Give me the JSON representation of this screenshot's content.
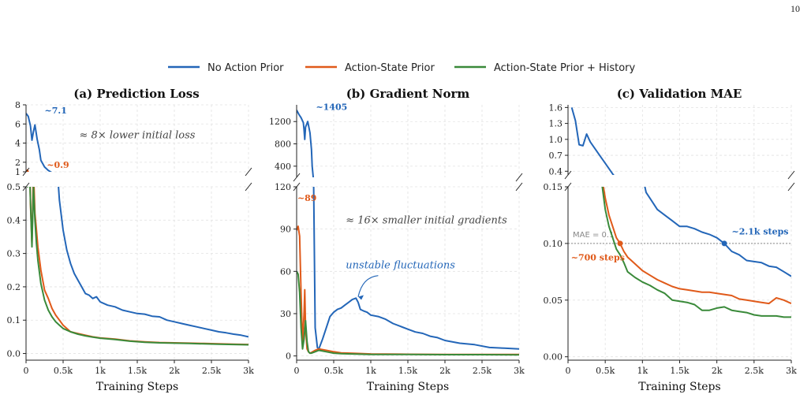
{
  "page": {
    "number": "10"
  },
  "colors": {
    "no_prior": "#2366b8",
    "as_prior": "#e05a1a",
    "as_hist": "#3a8a3a",
    "ref": "#888888",
    "grid": "#e2e2e2"
  },
  "legend": [
    {
      "name": "No Action Prior",
      "color": "#2366b8"
    },
    {
      "name": "Action-State Prior",
      "color": "#e05a1a"
    },
    {
      "name": "Action-State Prior + History",
      "color": "#3a8a3a"
    }
  ],
  "chart_data": [
    {
      "type": "line",
      "title": "(a) Prediction Loss",
      "xlabel": "Training Steps",
      "xlim": [
        0,
        3000
      ],
      "xticks": [
        0,
        500,
        1000,
        1500,
        2000,
        2500,
        3000
      ],
      "xtick_labels": [
        "0",
        "0.5k",
        "1k",
        "1.5k",
        "2k",
        "2.5k",
        "3k"
      ],
      "broken_y": true,
      "upper": {
        "ylim": [
          1,
          8
        ],
        "yticks": [
          1,
          2,
          4,
          6,
          8
        ],
        "ytick_labels": [
          "1",
          "2",
          "4",
          "6",
          "8"
        ]
      },
      "lower": {
        "ylim": [
          -0.02,
          0.5
        ],
        "yticks": [
          0,
          0.1,
          0.2,
          0.3,
          0.4,
          0.5
        ],
        "ytick_labels": [
          "0.0",
          "0.1",
          "0.2",
          "0.3",
          "0.4",
          "0.5"
        ]
      },
      "annotations": [
        {
          "text": "~7.1",
          "x": 250,
          "y": 7.1,
          "panel": "upper",
          "color": "#2366b8",
          "bold": true
        },
        {
          "text": "~0.9",
          "x": 280,
          "y": 1.4,
          "panel": "upper",
          "color": "#e05a1a",
          "bold": true
        },
        {
          "text": "≈ 8× lower initial loss",
          "x": 1500,
          "y": 4.5,
          "panel": "upper",
          "color": "#444444",
          "italic": true
        }
      ],
      "series": [
        {
          "name": "No Action Prior",
          "color": "#2366b8",
          "x": [
            0,
            30,
            60,
            80,
            100,
            120,
            150,
            180,
            200,
            250,
            300,
            350,
            400,
            450,
            500,
            550,
            600,
            650,
            700,
            750,
            800,
            850,
            900,
            950,
            1000,
            1100,
            1200,
            1300,
            1400,
            1500,
            1600,
            1700,
            1800,
            1900,
            2000,
            2100,
            2200,
            2300,
            2400,
            2500,
            2600,
            2700,
            2800,
            2900,
            3000
          ],
          "y": [
            7.1,
            6.8,
            5.8,
            4.3,
            5.2,
            5.9,
            4.4,
            3.3,
            2.2,
            1.5,
            1.15,
            0.9,
            0.62,
            0.46,
            0.37,
            0.31,
            0.27,
            0.24,
            0.22,
            0.2,
            0.18,
            0.175,
            0.165,
            0.17,
            0.155,
            0.145,
            0.14,
            0.13,
            0.125,
            0.12,
            0.118,
            0.112,
            0.11,
            0.1,
            0.095,
            0.09,
            0.085,
            0.08,
            0.075,
            0.07,
            0.065,
            0.062,
            0.058,
            0.055,
            0.05
          ]
        },
        {
          "name": "Action-State Prior",
          "color": "#e05a1a",
          "x": [
            0,
            20,
            40,
            60,
            80,
            100,
            120,
            140,
            160,
            200,
            250,
            300,
            350,
            400,
            450,
            500,
            600,
            700,
            800,
            900,
            1000,
            1200,
            1400,
            1600,
            1800,
            2000,
            2200,
            2400,
            2600,
            2800,
            3000
          ],
          "y": [
            0.9,
            1.2,
            0.7,
            0.45,
            0.33,
            0.55,
            0.42,
            0.37,
            0.32,
            0.25,
            0.19,
            0.165,
            0.135,
            0.115,
            0.1,
            0.085,
            0.065,
            0.06,
            0.055,
            0.05,
            0.047,
            0.043,
            0.038,
            0.035,
            0.033,
            0.032,
            0.031,
            0.03,
            0.029,
            0.028,
            0.027
          ]
        },
        {
          "name": "Action-State Prior + History",
          "color": "#3a8a3a",
          "x": [
            0,
            20,
            40,
            60,
            80,
            100,
            120,
            140,
            160,
            200,
            250,
            300,
            350,
            400,
            450,
            500,
            600,
            700,
            800,
            900,
            1000,
            1200,
            1400,
            1600,
            1800,
            2000,
            2200,
            2400,
            2600,
            2800,
            3000
          ],
          "y": [
            0.6,
            0.5,
            0.6,
            0.46,
            0.32,
            0.5,
            0.4,
            0.33,
            0.28,
            0.21,
            0.16,
            0.13,
            0.11,
            0.095,
            0.085,
            0.075,
            0.065,
            0.058,
            0.053,
            0.049,
            0.046,
            0.042,
            0.037,
            0.034,
            0.032,
            0.031,
            0.03,
            0.029,
            0.028,
            0.027,
            0.026
          ]
        }
      ]
    },
    {
      "type": "line",
      "title": "(b) Gradient Norm",
      "xlabel": "Training Steps",
      "xlim": [
        0,
        3000
      ],
      "xticks": [
        0,
        500,
        1000,
        1500,
        2000,
        2500,
        3000
      ],
      "xtick_labels": [
        "0",
        "0.5k",
        "1k",
        "1.5k",
        "2k",
        "2.5k",
        "3k"
      ],
      "broken_y": true,
      "upper": {
        "ylim": [
          200,
          1500
        ],
        "yticks": [
          400,
          800,
          1200
        ],
        "ytick_labels": [
          "400",
          "800",
          "1200"
        ]
      },
      "lower": {
        "ylim": [
          -3,
          120
        ],
        "yticks": [
          0,
          30,
          60,
          90,
          120
        ],
        "ytick_labels": [
          "0",
          "30",
          "60",
          "90",
          "120"
        ]
      },
      "annotations": [
        {
          "text": "~1405",
          "x": 260,
          "y": 1405,
          "panel": "upper",
          "color": "#2366b8",
          "bold": true
        },
        {
          "text": "~89",
          "x": 10,
          "y": 110,
          "panel": "lower",
          "color": "#e05a1a",
          "bold": true
        },
        {
          "text": "≈ 16× smaller initial gradients",
          "x": 1750,
          "y": 94,
          "panel": "lower",
          "color": "#444444",
          "italic": true
        },
        {
          "text": "unstable fluctuations",
          "x": 1400,
          "y": 62,
          "panel": "lower",
          "color": "#2366b8",
          "italic": true
        }
      ],
      "series": [
        {
          "name": "No Action Prior",
          "color": "#2366b8",
          "x": [
            0,
            30,
            60,
            90,
            100,
            110,
            120,
            150,
            180,
            200,
            210,
            230,
            250,
            280,
            300,
            350,
            400,
            450,
            500,
            550,
            600,
            650,
            700,
            750,
            800,
            830,
            860,
            900,
            950,
            1000,
            1100,
            1200,
            1300,
            1400,
            1500,
            1600,
            1700,
            1800,
            1900,
            2000,
            2200,
            2400,
            2600,
            2800,
            3000
          ],
          "y": [
            1405,
            1330,
            1270,
            1180,
            1050,
            880,
            1100,
            1200,
            1000,
            700,
            400,
            120,
            20,
            6,
            5,
            12,
            20,
            28,
            31,
            33,
            34,
            36,
            38,
            40,
            41,
            38,
            33,
            32,
            31,
            29,
            28,
            26,
            23,
            21,
            19,
            17,
            16,
            14,
            13,
            11,
            9,
            8,
            6,
            5.5,
            5
          ]
        },
        {
          "name": "Action-State Prior",
          "color": "#e05a1a",
          "x": [
            0,
            20,
            40,
            60,
            80,
            100,
            110,
            120,
            140,
            160,
            180,
            200,
            250,
            300,
            350,
            400,
            500,
            600,
            800,
            1000,
            1500,
            2000,
            2500,
            3000
          ],
          "y": [
            89,
            92,
            85,
            45,
            8,
            30,
            47,
            20,
            5,
            3,
            2,
            2.5,
            4,
            5,
            4.5,
            4,
            3,
            2.2,
            1.8,
            1.4,
            1.2,
            1.1,
            1.0,
            1.0
          ]
        },
        {
          "name": "Action-State Prior + History",
          "color": "#3a8a3a",
          "x": [
            0,
            20,
            40,
            60,
            80,
            100,
            120,
            140,
            160,
            180,
            200,
            250,
            300,
            350,
            400,
            500,
            600,
            800,
            1000,
            1500,
            2000,
            2500,
            3000
          ],
          "y": [
            60,
            58,
            45,
            20,
            5,
            12,
            25,
            10,
            3,
            2,
            2,
            3,
            4,
            3.5,
            3,
            2,
            1.6,
            1.3,
            1.1,
            1.0,
            0.9,
            0.9,
            0.8
          ]
        }
      ]
    },
    {
      "type": "line",
      "title": "(c) Validation MAE",
      "xlabel": "Training Steps",
      "xlim": [
        0,
        3000
      ],
      "xticks": [
        0,
        500,
        1000,
        1500,
        2000,
        2500,
        3000
      ],
      "xtick_labels": [
        "0",
        "0.5k",
        "1k",
        "1.5k",
        "2k",
        "2.5k",
        "3k"
      ],
      "broken_y": true,
      "upper": {
        "ylim": [
          0.33,
          1.65
        ],
        "yticks": [
          0.4,
          0.7,
          1.0,
          1.3,
          1.6
        ],
        "ytick_labels": [
          "0.4",
          "0.7",
          "1.0",
          "1.3",
          "1.6"
        ]
      },
      "lower": {
        "ylim": [
          -0.003,
          0.15
        ],
        "yticks": [
          0,
          0.05,
          0.1,
          0.15
        ],
        "ytick_labels": [
          "0.00",
          "0.05",
          "0.10",
          "0.15"
        ]
      },
      "reference_line": {
        "y": 0.1,
        "label": "MAE = 0.1"
      },
      "markers": [
        {
          "x": 700,
          "y": 0.1,
          "color": "#e05a1a"
        },
        {
          "x": 2100,
          "y": 0.1,
          "color": "#2366b8"
        }
      ],
      "annotations": [
        {
          "text": "~2.1k steps",
          "x": 2200,
          "y": 0.108,
          "panel": "lower",
          "color": "#2366b8",
          "bold": true
        },
        {
          "text": "~700 steps",
          "x": 40,
          "y": 0.085,
          "panel": "lower",
          "color": "#e05a1a",
          "bold": true
        }
      ],
      "series": [
        {
          "name": "No Action Prior",
          "color": "#2366b8",
          "x": [
            50,
            100,
            150,
            200,
            250,
            300,
            350,
            400,
            500,
            550,
            600,
            650,
            700,
            800,
            900,
            1000,
            1050,
            1100,
            1200,
            1300,
            1400,
            1500,
            1600,
            1700,
            1800,
            1900,
            2000,
            2100,
            2200,
            2300,
            2400,
            2500,
            2600,
            2700,
            2800,
            2900,
            3000
          ],
          "y": [
            1.6,
            1.35,
            0.9,
            0.88,
            1.1,
            0.95,
            0.85,
            0.75,
            0.55,
            0.45,
            0.35,
            0.26,
            0.2,
            0.18,
            0.17,
            0.16,
            0.145,
            0.14,
            0.13,
            0.125,
            0.12,
            0.115,
            0.115,
            0.113,
            0.11,
            0.108,
            0.105,
            0.1,
            0.093,
            0.09,
            0.085,
            0.084,
            0.083,
            0.08,
            0.079,
            0.075,
            0.071
          ]
        },
        {
          "name": "Action-State Prior",
          "color": "#e05a1a",
          "x": [
            450,
            500,
            550,
            600,
            650,
            700,
            750,
            800,
            900,
            1000,
            1100,
            1200,
            1300,
            1400,
            1500,
            1600,
            1700,
            1800,
            1900,
            2000,
            2100,
            2200,
            2300,
            2400,
            2500,
            2600,
            2700,
            2800,
            2900,
            3000
          ],
          "y": [
            0.16,
            0.14,
            0.125,
            0.115,
            0.105,
            0.1,
            0.093,
            0.088,
            0.082,
            0.076,
            0.072,
            0.068,
            0.065,
            0.062,
            0.06,
            0.059,
            0.058,
            0.057,
            0.057,
            0.056,
            0.055,
            0.054,
            0.051,
            0.05,
            0.049,
            0.048,
            0.047,
            0.052,
            0.05,
            0.047
          ]
        },
        {
          "name": "Action-State Prior + History",
          "color": "#3a8a3a",
          "x": [
            450,
            500,
            550,
            600,
            650,
            700,
            750,
            800,
            900,
            1000,
            1100,
            1200,
            1300,
            1400,
            1500,
            1600,
            1700,
            1800,
            1900,
            2000,
            2100,
            2200,
            2300,
            2400,
            2500,
            2600,
            2700,
            2800,
            2900,
            3000
          ],
          "y": [
            0.155,
            0.13,
            0.115,
            0.105,
            0.095,
            0.09,
            0.083,
            0.075,
            0.07,
            0.066,
            0.063,
            0.059,
            0.056,
            0.05,
            0.049,
            0.048,
            0.046,
            0.041,
            0.041,
            0.043,
            0.044,
            0.041,
            0.04,
            0.039,
            0.037,
            0.036,
            0.036,
            0.036,
            0.035,
            0.035
          ]
        }
      ]
    }
  ]
}
